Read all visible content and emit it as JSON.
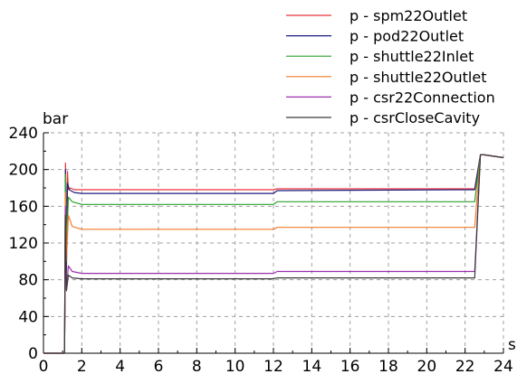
{
  "chart_data": {
    "type": "line",
    "title": "",
    "xlabel": "s",
    "ylabel": "bar",
    "xlim": [
      0,
      24
    ],
    "ylim": [
      0,
      240
    ],
    "xticks": [
      0,
      2,
      4,
      6,
      8,
      10,
      12,
      14,
      16,
      18,
      20,
      22,
      24
    ],
    "yticks": [
      0,
      40,
      80,
      120,
      160,
      200,
      240
    ],
    "x_minor_step": 1,
    "y_minor_step": 20,
    "grid": true,
    "legend_position": "top-right",
    "series": [
      {
        "name": "p - spm22Outlet",
        "color": "#e8343a",
        "points": [
          [
            0,
            0
          ],
          [
            1.1,
            0
          ],
          [
            1.15,
            207
          ],
          [
            1.2,
            120
          ],
          [
            1.25,
            198
          ],
          [
            1.3,
            178
          ],
          [
            1.4,
            180
          ],
          [
            1.6,
            178
          ],
          [
            2,
            178
          ],
          [
            12,
            178
          ],
          [
            12.2,
            179
          ],
          [
            22.5,
            179
          ],
          [
            22.8,
            216
          ],
          [
            23,
            216
          ],
          [
            24,
            213
          ]
        ]
      },
      {
        "name": "p - pod22Outlet",
        "color": "#1c1c80",
        "points": [
          [
            0,
            0
          ],
          [
            1.1,
            0
          ],
          [
            1.15,
            200
          ],
          [
            1.2,
            90
          ],
          [
            1.25,
            185
          ],
          [
            1.35,
            178
          ],
          [
            1.6,
            175
          ],
          [
            2,
            174
          ],
          [
            12,
            174
          ],
          [
            12.2,
            177
          ],
          [
            22.5,
            178
          ],
          [
            22.8,
            216
          ],
          [
            23,
            216
          ],
          [
            24,
            213
          ]
        ]
      },
      {
        "name": "p - shuttle22Inlet",
        "color": "#2ca02c",
        "points": [
          [
            0,
            0
          ],
          [
            1.1,
            0
          ],
          [
            1.15,
            195
          ],
          [
            1.2,
            110
          ],
          [
            1.3,
            170
          ],
          [
            1.5,
            165
          ],
          [
            2,
            162
          ],
          [
            12,
            162
          ],
          [
            12.2,
            165
          ],
          [
            22.5,
            165
          ],
          [
            22.8,
            216
          ],
          [
            23,
            216
          ],
          [
            24,
            213
          ]
        ]
      },
      {
        "name": "p - shuttle22Outlet",
        "color": "#f07c2a",
        "points": [
          [
            0,
            0
          ],
          [
            1.1,
            0
          ],
          [
            1.15,
            175
          ],
          [
            1.2,
            100
          ],
          [
            1.3,
            150
          ],
          [
            1.5,
            138
          ],
          [
            2,
            135
          ],
          [
            12,
            135
          ],
          [
            12.2,
            137
          ],
          [
            22.5,
            137
          ],
          [
            22.8,
            216
          ],
          [
            23,
            216
          ],
          [
            24,
            213
          ]
        ]
      },
      {
        "name": "p - csr22Connection",
        "color": "#9b2fae",
        "points": [
          [
            0,
            0
          ],
          [
            1.1,
            0
          ],
          [
            1.15,
            160
          ],
          [
            1.2,
            70
          ],
          [
            1.3,
            95
          ],
          [
            1.5,
            89
          ],
          [
            2,
            87
          ],
          [
            12,
            87
          ],
          [
            12.2,
            89
          ],
          [
            22.5,
            89
          ],
          [
            22.8,
            216
          ],
          [
            23,
            216
          ],
          [
            24,
            213
          ]
        ]
      },
      {
        "name": "p - csrCloseCavity",
        "color": "#3a3a3a",
        "points": [
          [
            0,
            0
          ],
          [
            1.1,
            0
          ],
          [
            1.15,
            150
          ],
          [
            1.2,
            68
          ],
          [
            1.3,
            85
          ],
          [
            1.5,
            82
          ],
          [
            2,
            81
          ],
          [
            12,
            81
          ],
          [
            12.2,
            82
          ],
          [
            22.5,
            82
          ],
          [
            22.8,
            216
          ],
          [
            23,
            216
          ],
          [
            24,
            213
          ]
        ]
      }
    ]
  }
}
